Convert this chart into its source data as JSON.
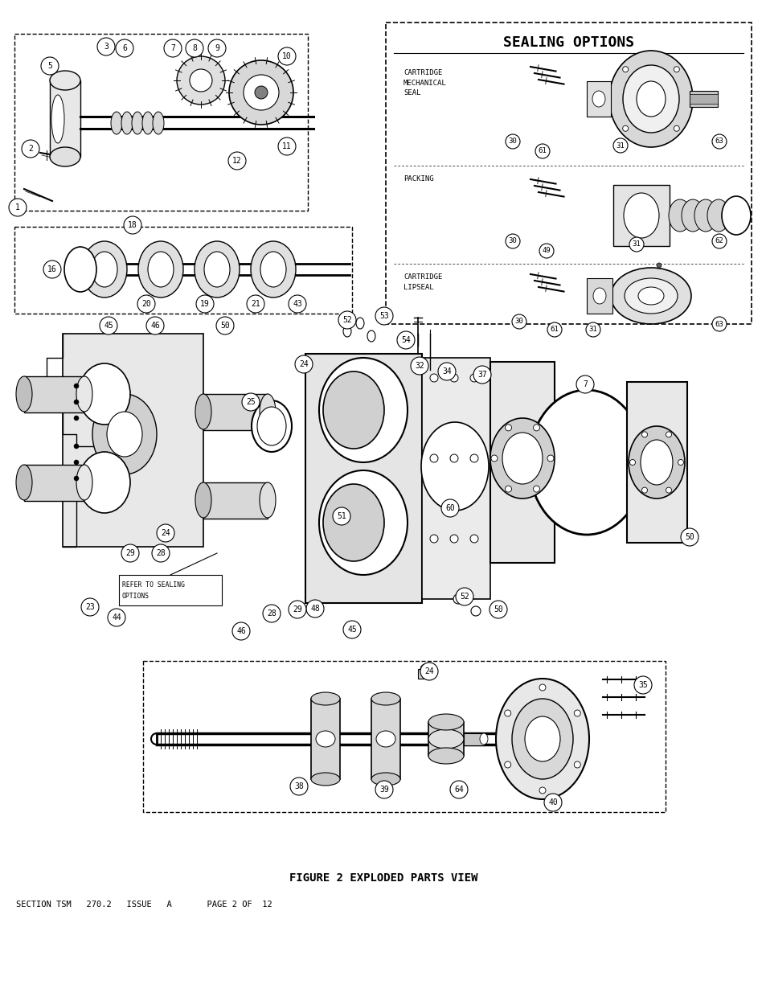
{
  "title": "FIGURE 2 EXPLODED PARTS VIEW",
  "footer": "SECTION TSM   270.2   ISSUE   A       PAGE 2 OF  12",
  "sealing_options_title": "SEALING OPTIONS",
  "bg_color": "#ffffff",
  "line_color": "#000000",
  "text_color": "#000000",
  "fig_width": 9.54,
  "fig_height": 12.35,
  "dpi": 100
}
